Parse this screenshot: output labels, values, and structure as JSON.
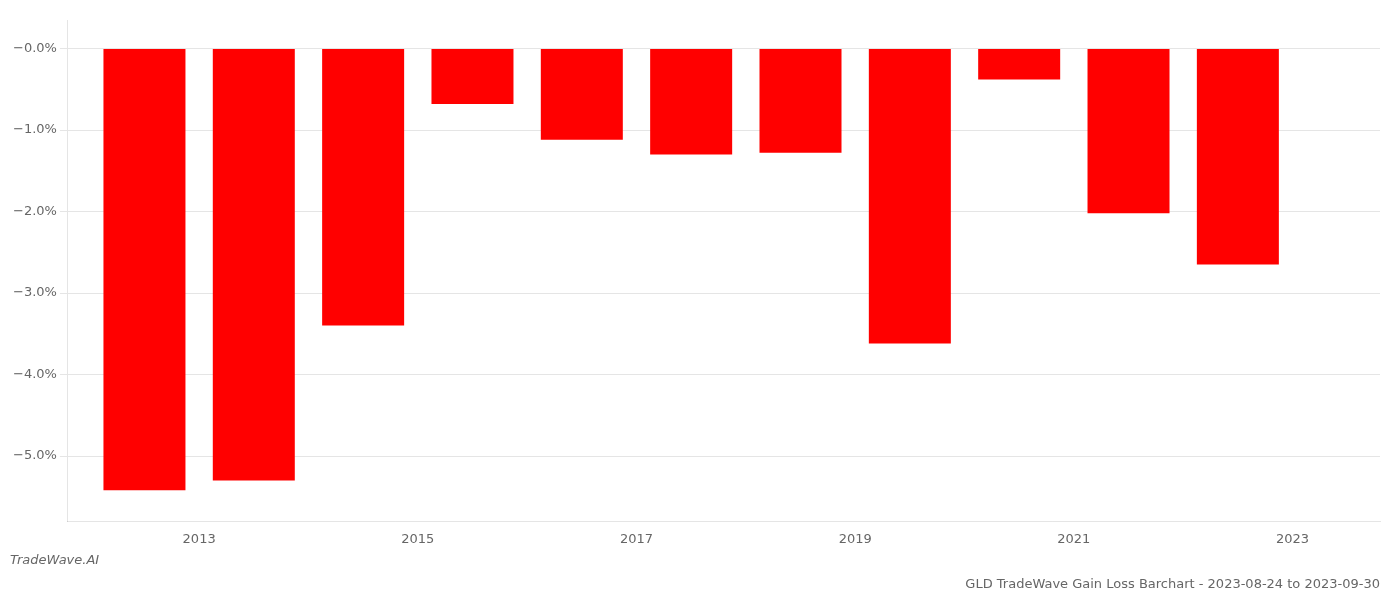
{
  "chart_data": {
    "type": "bar",
    "title": "GLD TradeWave Gain Loss Barchart - 2023-08-24 to 2023-09-30",
    "annotations": [
      "TradeWave.AI"
    ],
    "x": [
      2012.5,
      2013.5,
      2014.5,
      2015.5,
      2016.5,
      2017.5,
      2018.5,
      2019.5,
      2020.5,
      2021.5,
      2022.5
    ],
    "values": [
      -5.42,
      -5.3,
      -3.4,
      -0.68,
      -1.12,
      -1.3,
      -1.28,
      -3.62,
      -0.38,
      -2.02,
      -2.65
    ],
    "color": "#ff0000",
    "xlim": [
      2011.8,
      2023.8
    ],
    "xticks": [
      2013,
      2015,
      2017,
      2019,
      2021,
      2023
    ],
    "ylim": [
      -5.8,
      0.35
    ],
    "yticks": [
      {
        "value": 0.0,
        "label": "−0.0%"
      },
      {
        "value": -1.0,
        "label": "−1.0%"
      },
      {
        "value": -2.0,
        "label": "−2.0%"
      },
      {
        "value": -3.0,
        "label": "−3.0%"
      },
      {
        "value": -4.0,
        "label": "−4.0%"
      },
      {
        "value": -5.0,
        "label": "−5.0%"
      }
    ],
    "grid": "y"
  }
}
